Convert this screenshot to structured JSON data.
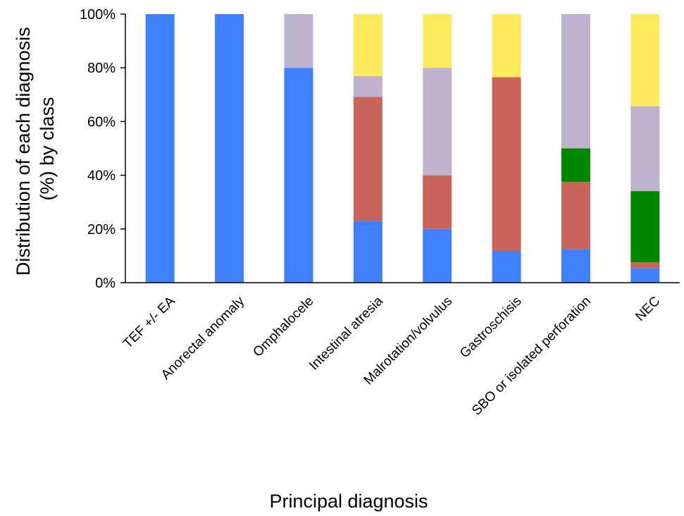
{
  "chart_data": {
    "type": "bar",
    "stacked": true,
    "title": "",
    "xlabel": "Principal diagnosis",
    "ylabel_lines": [
      "Distribution of each diagnosis",
      "(%) by class"
    ],
    "ylim": [
      0,
      100
    ],
    "yticks": [
      0,
      20,
      40,
      60,
      80,
      100
    ],
    "ytick_format": "%",
    "grid": false,
    "legend": "none",
    "categories": [
      "TEF +/- EA",
      "Anorectal anomaly",
      "Omphalocele",
      "Intestinal atresia",
      "Malrotation/volvulus",
      "Gastroschisis",
      "SBO or isolated perforation",
      "NEC"
    ],
    "series": [
      {
        "color": "#4080FF",
        "values": [
          100,
          100,
          80,
          23,
          20,
          11.8,
          12.5,
          5.4
        ]
      },
      {
        "color": "#C8645A",
        "values": [
          0,
          0,
          0,
          46.2,
          20,
          64.7,
          25,
          2.2
        ]
      },
      {
        "color": "#008800",
        "values": [
          0,
          0,
          0,
          0,
          0,
          0,
          12.5,
          26.5
        ]
      },
      {
        "color": "#BFB2CF",
        "values": [
          0,
          0,
          20,
          7.7,
          40,
          0,
          50,
          31.6
        ]
      },
      {
        "color": "#FFE95F",
        "values": [
          0,
          0,
          0,
          23.1,
          20,
          23.5,
          0,
          34.3
        ]
      }
    ]
  }
}
